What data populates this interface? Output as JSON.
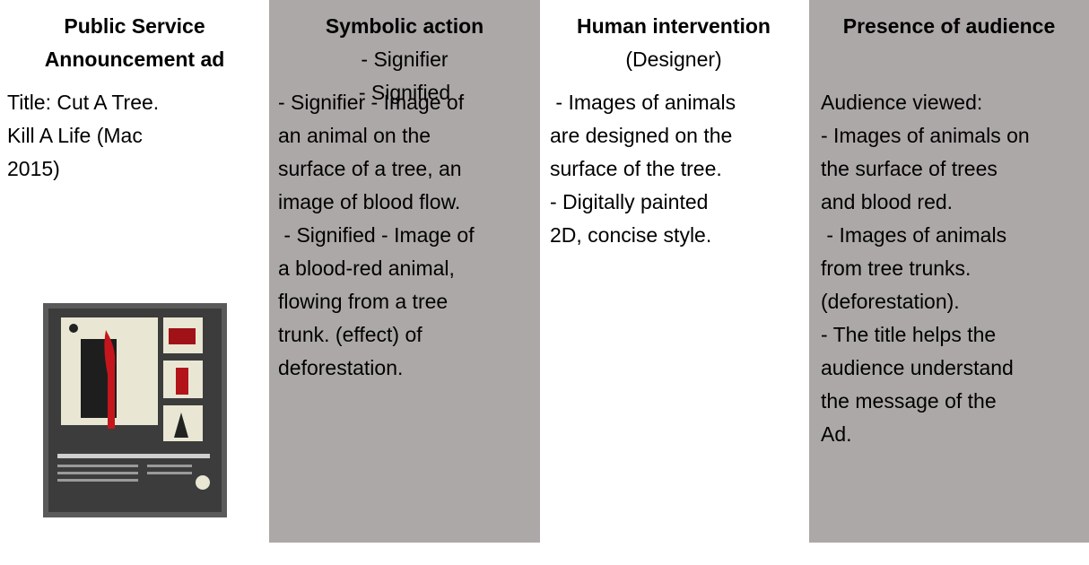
{
  "table": {
    "header": [
      {
        "title": [
          "Public Service",
          "Announcement ad"
        ],
        "lines": []
      },
      {
        "title": [
          "Symbolic action"
        ],
        "lines": [
          "- Signifier",
          "- Signified"
        ]
      },
      {
        "title": [
          "Human intervention"
        ],
        "lines": [
          "(Designer)"
        ]
      },
      {
        "title": [
          "Presence of audience"
        ],
        "lines": []
      }
    ],
    "rows": [
      [
        [
          "Title: Cut A Tree.",
          "Kill A Life (Mac",
          "2015)"
        ],
        [
          "- Signifier - Image of",
          "an animal on the",
          "surface of a tree, an",
          "image of blood flow.",
          " - Signified - Image of",
          "a blood-red animal,",
          "flowing from a tree",
          "trunk. (effect) of",
          "deforestation."
        ],
        [
          " - Images of animals",
          "are designed on the",
          "surface of the tree.",
          "- Digitally painted",
          "2D, concise style."
        ],
        [
          "Audience viewed:",
          "- Images of animals on",
          "the surface of trees",
          "and blood red.",
          " - Images of animals",
          "from tree trunks.",
          "(deforestation).",
          "- The title helps the",
          "audience understand",
          "the message of the",
          "Ad."
        ]
      ]
    ]
  }
}
